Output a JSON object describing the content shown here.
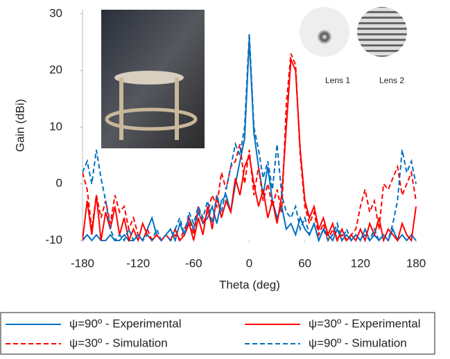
{
  "chart_data": {
    "type": "line",
    "x_label": "Theta (deg)",
    "y_label": "Gain (dBi)",
    "annotations": [
      "Lens 1",
      "Lens 2"
    ],
    "x": [
      -180,
      -175,
      -170,
      -165,
      -160,
      -155,
      -150,
      -145,
      -140,
      -135,
      -130,
      -125,
      -120,
      -115,
      -110,
      -105,
      -100,
      -95,
      -90,
      -85,
      -80,
      -75,
      -70,
      -65,
      -60,
      -55,
      -50,
      -45,
      -40,
      -35,
      -30,
      -25,
      -20,
      -15,
      -10,
      -5,
      0,
      5,
      10,
      15,
      20,
      25,
      30,
      35,
      40,
      45,
      50,
      55,
      60,
      65,
      70,
      75,
      80,
      85,
      90,
      95,
      100,
      105,
      110,
      115,
      120,
      125,
      130,
      135,
      140,
      145,
      150,
      155,
      160,
      165,
      170,
      175,
      180
    ],
    "xlim": [
      -180,
      180
    ],
    "xticks": [
      -180,
      -120,
      -60,
      0,
      60,
      120,
      180
    ],
    "ylim": [
      -10,
      30
    ],
    "yticks": [
      -10,
      0,
      10,
      20,
      30
    ],
    "legend": "bottom",
    "series": [
      {
        "name": "ψ=90º - Experimental",
        "color": "#0070c0",
        "style": "solid",
        "values": [
          -10,
          -9,
          -10,
          -9,
          -10,
          -10,
          -9,
          -10,
          -10,
          -9,
          -10,
          -10,
          -9,
          -10,
          -8,
          -6,
          -9,
          -10,
          -9,
          -8,
          -10,
          -7,
          -9,
          -6,
          -8,
          -5,
          -7,
          -6,
          -4,
          -7,
          -3,
          -2,
          -5,
          0,
          4,
          8,
          25.5,
          9,
          3,
          -2,
          3,
          -3,
          -6,
          -4,
          -8,
          -7,
          -9,
          -6,
          -8,
          -9,
          -7,
          -10,
          -8,
          -9,
          -10,
          -8,
          -10,
          -9,
          -10,
          -9,
          -10,
          -8,
          -10,
          -9,
          -10,
          -9,
          -10,
          -8,
          -10,
          -9,
          -10,
          -9,
          -10
        ]
      },
      {
        "name": "ψ=30º - Experimental",
        "color": "#ff0000",
        "style": "solid",
        "values": [
          -10,
          -3,
          -9,
          -2,
          -10,
          -5,
          -8,
          -4,
          -9,
          -6,
          -10,
          -8,
          -10,
          -7,
          -9,
          -10,
          -9,
          -10,
          -9,
          -10,
          -8,
          -10,
          -9,
          -7,
          -10,
          -6,
          -9,
          -4,
          -8,
          -2,
          -6,
          -3,
          -5,
          1,
          -2,
          3,
          5,
          0,
          -4,
          -1,
          -6,
          -3,
          -7,
          -2,
          10,
          22,
          20,
          6,
          -3,
          -6,
          -4,
          -8,
          -6,
          -9,
          -7,
          -10,
          -8,
          -10,
          -9,
          -10,
          -8,
          -10,
          -7,
          -9,
          -6,
          -10,
          -8,
          -9,
          -10,
          -7,
          -9,
          -10,
          -4
        ]
      },
      {
        "name": "ψ=30º - Simulation",
        "color": "#ff0000",
        "style": "dashed",
        "values": [
          2,
          -1,
          -8,
          -2,
          -6,
          -3,
          -7,
          -2,
          -5,
          -4,
          -8,
          -6,
          -9,
          -10,
          -8,
          -10,
          -9,
          -10,
          -9,
          -10,
          -9,
          -10,
          -8,
          -6,
          -9,
          -4,
          -7,
          -5,
          -2,
          -4,
          2,
          -1,
          3,
          4,
          7,
          0,
          6,
          -2,
          3,
          -3,
          0,
          -4,
          -1,
          -5,
          14,
          23,
          21,
          5,
          -4,
          -7,
          -5,
          -9,
          -7,
          -10,
          -8,
          -10,
          -9,
          -10,
          -9,
          -8,
          -4,
          -1,
          -5,
          -3,
          -8,
          0,
          -1,
          1,
          3,
          -2,
          0,
          2,
          -3
        ]
      },
      {
        "name": "ψ=90º - Simulation",
        "color": "#0070c0",
        "style": "dashed",
        "values": [
          2,
          4,
          0,
          6,
          1,
          -3,
          -8,
          -10,
          -9,
          -10,
          -8,
          -10,
          -9,
          -10,
          -9,
          -10,
          -8,
          -10,
          -9,
          -10,
          -8,
          -6,
          -9,
          -5,
          -7,
          -4,
          -6,
          -3,
          -7,
          -2,
          -5,
          -1,
          3,
          7,
          5,
          10,
          26.5,
          10,
          6,
          1,
          4,
          -1,
          7,
          -2,
          -5,
          -6,
          -4,
          -8,
          -6,
          -9,
          -7,
          -10,
          -8,
          -10,
          -9,
          -7,
          -10,
          -8,
          -10,
          -9,
          -10,
          -9,
          -10,
          -8,
          -10,
          -9,
          -10,
          -7,
          -3,
          6,
          2,
          4,
          0
        ]
      }
    ]
  }
}
